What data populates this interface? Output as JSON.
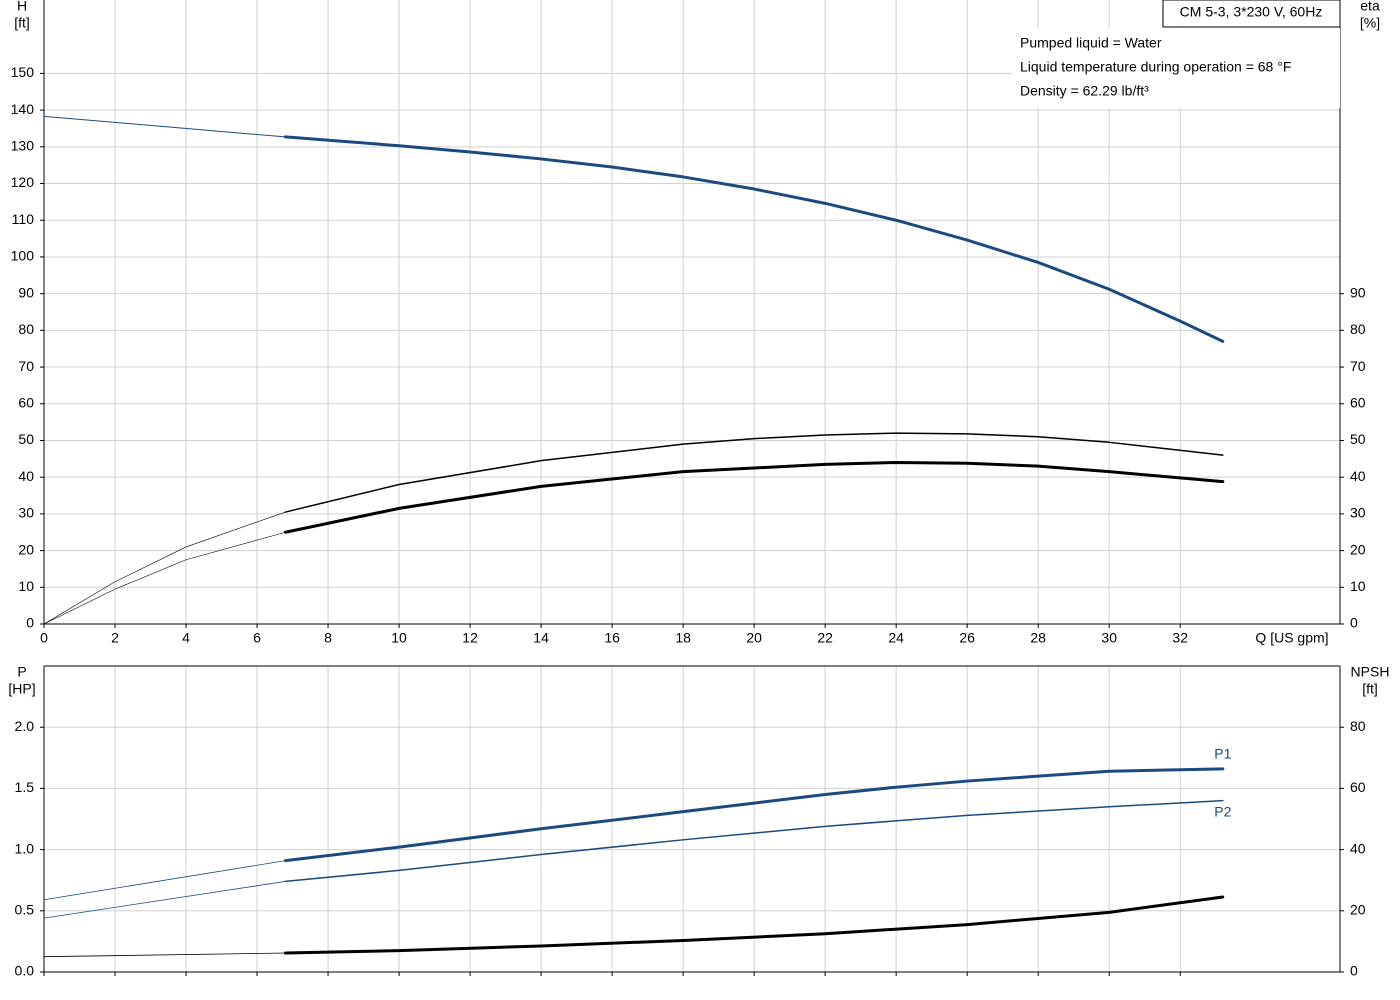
{
  "chart_data": [
    {
      "type": "line",
      "box_title": "CM 5-3, 3*230 V, 60Hz",
      "annotations": [
        "Pumped liquid = Water",
        "Liquid temperature during operation = 68 °F",
        "Density = 62.29 lb/ft³"
      ],
      "x_label": "Q [US gpm]",
      "y_label": "H",
      "y_unit": "[ft]",
      "y2_label": "eta",
      "y2_unit": "[%]",
      "xlim": [
        0,
        36.5
      ],
      "xticks": [
        0,
        2,
        4,
        6,
        8,
        10,
        12,
        14,
        16,
        18,
        20,
        22,
        24,
        26,
        28,
        30,
        32
      ],
      "xtick_labels": true,
      "ylim": [
        0,
        170
      ],
      "yticks": [
        0,
        10,
        20,
        30,
        40,
        50,
        60,
        70,
        80,
        90,
        100,
        110,
        120,
        130,
        140,
        150
      ],
      "y2lim": [
        0,
        170
      ],
      "y2ticks": [
        0,
        10,
        20,
        30,
        40,
        50,
        60,
        70,
        80,
        90
      ],
      "grid": true,
      "series": [
        {
          "color": "#1a4a80",
          "line_width": 1,
          "axis": "y",
          "x": [
            0,
            6.8
          ],
          "values": [
            138.3,
            132.7
          ]
        },
        {
          "color": "#1a4a80",
          "line_width": 3,
          "axis": "y",
          "x": [
            6.8,
            10,
            12,
            14,
            16,
            18,
            20,
            22,
            24,
            26,
            28,
            30,
            32,
            33.2
          ],
          "values": [
            132.7,
            130.3,
            128.6,
            126.7,
            124.5,
            121.8,
            118.5,
            114.6,
            110,
            104.6,
            98.5,
            91.2,
            82.5,
            77
          ]
        },
        {
          "color": "#000000",
          "line_width": 0.6,
          "axis": "y2",
          "x": [
            0,
            2,
            4,
            6.8
          ],
          "values": [
            0,
            11.5,
            21,
            30.5
          ]
        },
        {
          "color": "#000000",
          "line_width": 1.5,
          "axis": "y2",
          "x": [
            6.8,
            10,
            14,
            18,
            20,
            22,
            24,
            26,
            28,
            30,
            33.2
          ],
          "values": [
            30.5,
            38,
            44.5,
            49,
            50.5,
            51.5,
            52,
            51.8,
            51,
            49.5,
            46
          ]
        },
        {
          "color": "#000000",
          "line_width": 0.6,
          "axis": "y2",
          "x": [
            0,
            2,
            4,
            6.8
          ],
          "values": [
            0,
            9.5,
            17.5,
            25
          ]
        },
        {
          "color": "#000000",
          "line_width": 3,
          "axis": "y2",
          "x": [
            6.8,
            10,
            14,
            18,
            20,
            22,
            24,
            26,
            28,
            30,
            33.2
          ],
          "values": [
            25,
            31.5,
            37.5,
            41.5,
            42.5,
            43.5,
            44,
            43.8,
            43,
            41.5,
            38.8
          ]
        }
      ]
    },
    {
      "type": "line",
      "y_label": "P",
      "y_unit": "[HP]",
      "y2_label": "NPSH",
      "y2_unit": "[ft]",
      "xlim": [
        0,
        36.5
      ],
      "xticks": [
        0,
        2,
        4,
        6,
        8,
        10,
        12,
        14,
        16,
        18,
        20,
        22,
        24,
        26,
        28,
        30,
        32
      ],
      "xtick_labels": false,
      "ylim": [
        0,
        2.5
      ],
      "yticks": [
        {
          "value": 0,
          "label": "0.0"
        },
        0.5,
        {
          "value": 1,
          "label": "1.0"
        },
        1.5,
        {
          "value": 2,
          "label": "2.0"
        }
      ],
      "y2lim": [
        0,
        100
      ],
      "y2ticks": [
        0,
        20,
        40,
        60,
        80
      ],
      "grid": true,
      "series": [
        {
          "color": "#1a4a80",
          "line_width": 0.8,
          "axis": "y",
          "x": [
            0,
            6.8
          ],
          "values": [
            0.59,
            0.91
          ]
        },
        {
          "name": "P1",
          "label_position": "above",
          "color": "#1a4a80",
          "line_width": 3,
          "axis": "y",
          "x": [
            6.8,
            10,
            14,
            18,
            20,
            22,
            24,
            26,
            28,
            30,
            33.2
          ],
          "values": [
            0.91,
            1.02,
            1.17,
            1.31,
            1.38,
            1.45,
            1.51,
            1.56,
            1.6,
            1.64,
            1.66
          ]
        },
        {
          "color": "#1a4a80",
          "line_width": 0.8,
          "axis": "y",
          "x": [
            0,
            6.8
          ],
          "values": [
            0.44,
            0.74
          ]
        },
        {
          "name": "P2",
          "label_position": "below",
          "color": "#1a4a80",
          "line_width": 1.5,
          "axis": "y",
          "x": [
            6.8,
            10,
            14,
            18,
            22,
            26,
            30,
            33.2
          ],
          "values": [
            0.74,
            0.83,
            0.96,
            1.08,
            1.19,
            1.28,
            1.35,
            1.4
          ]
        },
        {
          "color": "#000000",
          "line_width": 0.8,
          "axis": "y2",
          "x": [
            0,
            6.8
          ],
          "values": [
            5,
            6.2
          ]
        },
        {
          "color": "#000000",
          "line_width": 3,
          "axis": "y2",
          "x": [
            6.8,
            10,
            14,
            18,
            22,
            26,
            30,
            33.2
          ],
          "values": [
            6.2,
            7,
            8.5,
            10.3,
            12.5,
            15.5,
            19.5,
            24.5
          ]
        }
      ]
    }
  ]
}
